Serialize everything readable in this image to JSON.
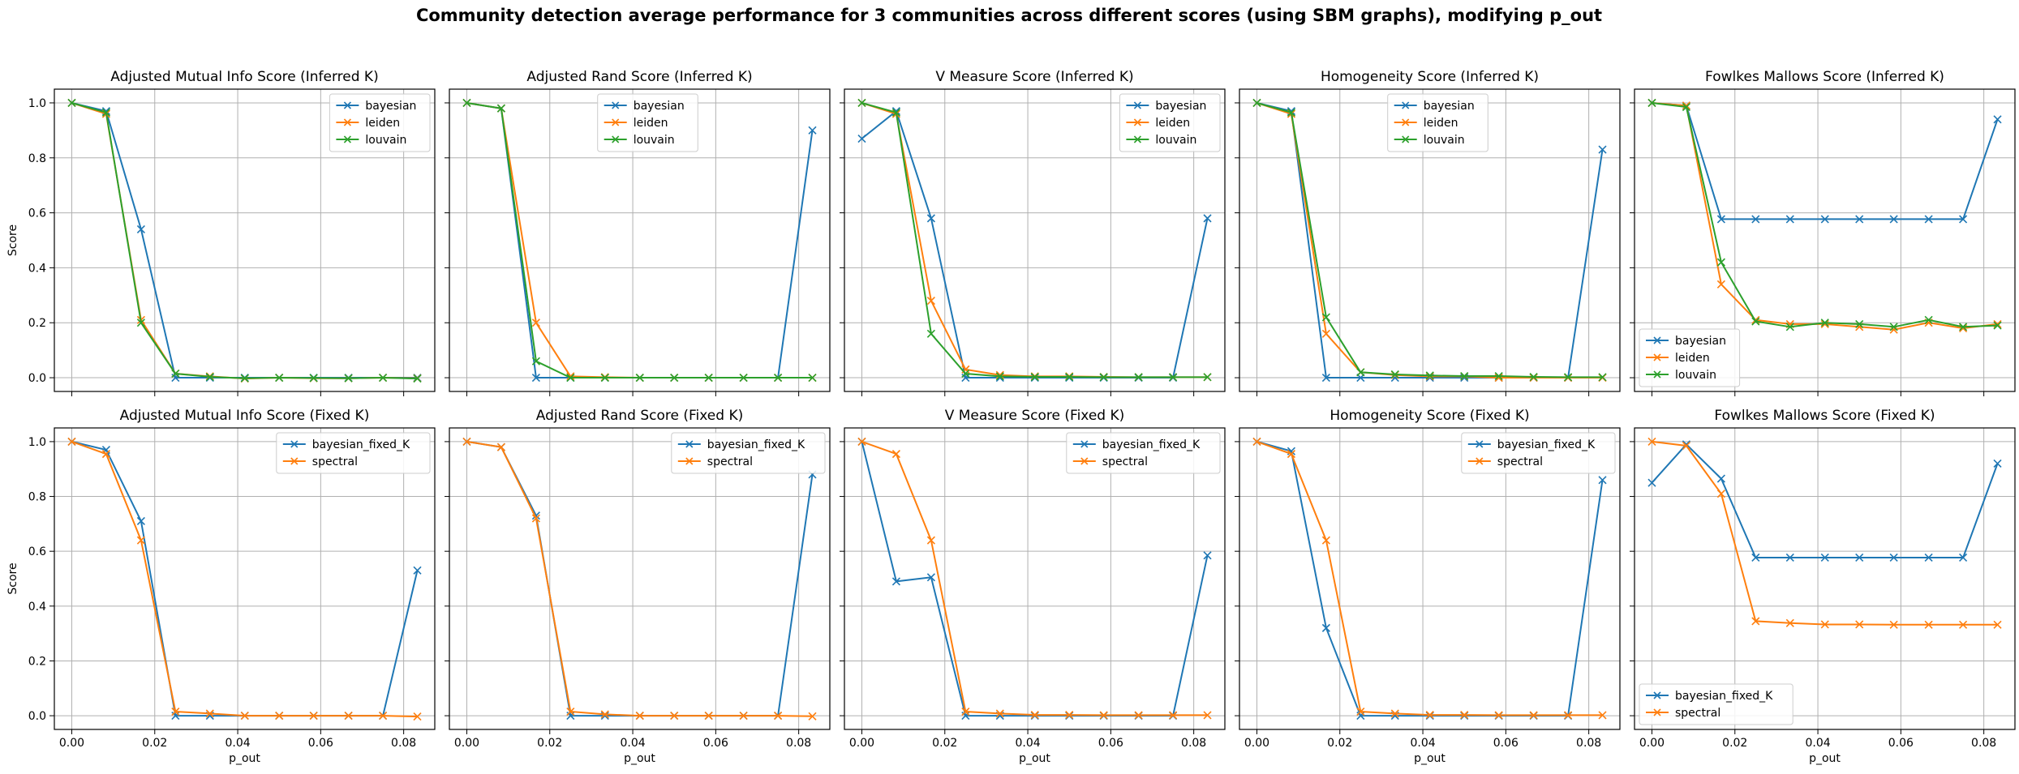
{
  "figure": {
    "suptitle": "Community detection average performance for 3 communities across different scores (using SBM graphs), modifying p_out"
  },
  "colors": {
    "bayesian": "#1f77b4",
    "leiden": "#ff7f0e",
    "louvain": "#2ca02c",
    "bayesian_fixed_K": "#1f77b4",
    "spectral": "#ff7f0e"
  },
  "chart_data": [
    {
      "type": "line",
      "title": "Adjusted Mutual Info Score (Inferred K)",
      "xlabel": "",
      "ylabel": "Score",
      "xlim": [
        -0.0042,
        0.0875
      ],
      "ylim": [
        -0.05,
        1.05
      ],
      "legend": "upper right",
      "grid": true,
      "marker": "x",
      "x": [
        0.0,
        0.0083,
        0.0167,
        0.025,
        0.0333,
        0.0417,
        0.05,
        0.0583,
        0.0667,
        0.075,
        0.0833
      ],
      "xticks": [
        "0.00",
        "0.02",
        "0.04",
        "0.06",
        "0.08"
      ],
      "yticks": [
        "0.0",
        "0.2",
        "0.4",
        "0.6",
        "0.8",
        "1.0"
      ],
      "series": [
        {
          "name": "bayesian",
          "color": "#1f77b4",
          "values": [
            1.0,
            0.97,
            0.54,
            0.0,
            0.0,
            0.0,
            0.0,
            0.0,
            0.0,
            0.0,
            0.0
          ]
        },
        {
          "name": "leiden",
          "color": "#ff7f0e",
          "values": [
            1.0,
            0.96,
            0.21,
            0.015,
            0.005,
            -0.003,
            0.0,
            -0.002,
            -0.002,
            0.0,
            -0.002
          ]
        },
        {
          "name": "louvain",
          "color": "#2ca02c",
          "values": [
            1.0,
            0.965,
            0.2,
            0.015,
            0.003,
            -0.002,
            0.0,
            -0.001,
            -0.002,
            0.0,
            -0.003
          ]
        }
      ]
    },
    {
      "type": "line",
      "title": "Adjusted Rand Score (Inferred K)",
      "xlabel": "",
      "ylabel": "",
      "xlim": [
        -0.0042,
        0.0875
      ],
      "ylim": [
        -0.05,
        1.05
      ],
      "legend": "upper center",
      "grid": true,
      "marker": "x",
      "x": [
        0.0,
        0.0083,
        0.0167,
        0.025,
        0.0333,
        0.0417,
        0.05,
        0.0583,
        0.0667,
        0.075,
        0.0833
      ],
      "xticks": [
        "0.00",
        "0.02",
        "0.04",
        "0.06",
        "0.08"
      ],
      "yticks": [
        "0.0",
        "0.2",
        "0.4",
        "0.6",
        "0.8",
        "1.0"
      ],
      "series": [
        {
          "name": "bayesian",
          "color": "#1f77b4",
          "values": [
            1.0,
            0.98,
            0.0,
            0.0,
            0.0,
            0.0,
            0.0,
            0.0,
            0.0,
            0.0,
            0.9
          ]
        },
        {
          "name": "leiden",
          "color": "#ff7f0e",
          "values": [
            1.0,
            0.98,
            0.2,
            0.005,
            0.002,
            0.0,
            0.0,
            0.0,
            0.0,
            0.0,
            0.0
          ]
        },
        {
          "name": "louvain",
          "color": "#2ca02c",
          "values": [
            1.0,
            0.98,
            0.06,
            0.0,
            0.0,
            0.0,
            0.0,
            0.0,
            0.0,
            0.0,
            0.0
          ]
        }
      ]
    },
    {
      "type": "line",
      "title": "V Measure Score (Inferred K)",
      "xlabel": "",
      "ylabel": "",
      "xlim": [
        -0.0042,
        0.0875
      ],
      "ylim": [
        -0.05,
        1.05
      ],
      "legend": "upper right",
      "grid": true,
      "marker": "x",
      "x": [
        0.0,
        0.0083,
        0.0167,
        0.025,
        0.0333,
        0.0417,
        0.05,
        0.0583,
        0.0667,
        0.075,
        0.0833
      ],
      "xticks": [
        "0.00",
        "0.02",
        "0.04",
        "0.06",
        "0.08"
      ],
      "yticks": [
        "0.0",
        "0.2",
        "0.4",
        "0.6",
        "0.8",
        "1.0"
      ],
      "series": [
        {
          "name": "bayesian",
          "color": "#1f77b4",
          "values": [
            0.87,
            0.97,
            0.58,
            0.0,
            0.0,
            0.0,
            0.0,
            0.0,
            0.0,
            0.0,
            0.58
          ]
        },
        {
          "name": "leiden",
          "color": "#ff7f0e",
          "values": [
            1.0,
            0.96,
            0.28,
            0.03,
            0.01,
            0.005,
            0.005,
            0.003,
            0.002,
            0.002,
            0.002
          ]
        },
        {
          "name": "louvain",
          "color": "#2ca02c",
          "values": [
            1.0,
            0.965,
            0.16,
            0.015,
            0.005,
            0.003,
            0.003,
            0.002,
            0.002,
            0.002,
            0.002
          ]
        }
      ]
    },
    {
      "type": "line",
      "title": "Homogeneity Score (Inferred K)",
      "xlabel": "",
      "ylabel": "",
      "xlim": [
        -0.0042,
        0.0875
      ],
      "ylim": [
        -0.05,
        1.05
      ],
      "legend": "upper center",
      "grid": true,
      "marker": "x",
      "x": [
        0.0,
        0.0083,
        0.0167,
        0.025,
        0.0333,
        0.0417,
        0.05,
        0.0583,
        0.0667,
        0.075,
        0.0833
      ],
      "xticks": [
        "0.00",
        "0.02",
        "0.04",
        "0.06",
        "0.08"
      ],
      "yticks": [
        "0.0",
        "0.2",
        "0.4",
        "0.6",
        "0.8",
        "1.0"
      ],
      "series": [
        {
          "name": "bayesian",
          "color": "#1f77b4",
          "values": [
            1.0,
            0.97,
            0.0,
            0.0,
            0.0,
            0.0,
            0.0,
            0.0,
            0.0,
            0.0,
            0.83
          ]
        },
        {
          "name": "leiden",
          "color": "#ff7f0e",
          "values": [
            1.0,
            0.96,
            0.16,
            0.02,
            0.01,
            0.005,
            0.005,
            0.0,
            0.0,
            0.0,
            0.0
          ]
        },
        {
          "name": "louvain",
          "color": "#2ca02c",
          "values": [
            1.0,
            0.965,
            0.22,
            0.02,
            0.012,
            0.008,
            0.006,
            0.006,
            0.003,
            0.002,
            0.002
          ]
        }
      ]
    },
    {
      "type": "line",
      "title": "Fowlkes Mallows Score (Inferred K)",
      "xlabel": "",
      "ylabel": "",
      "xlim": [
        -0.0042,
        0.0875
      ],
      "ylim": [
        -0.05,
        1.05
      ],
      "legend": "lower left",
      "grid": true,
      "marker": "x",
      "x": [
        0.0,
        0.0083,
        0.0167,
        0.025,
        0.0333,
        0.0417,
        0.05,
        0.0583,
        0.0667,
        0.075,
        0.0833
      ],
      "xticks": [
        "0.00",
        "0.02",
        "0.04",
        "0.06",
        "0.08"
      ],
      "yticks": [
        "0.0",
        "0.2",
        "0.4",
        "0.6",
        "0.8",
        "1.0"
      ],
      "series": [
        {
          "name": "bayesian",
          "color": "#1f77b4",
          "values": [
            1.0,
            0.99,
            0.577,
            0.577,
            0.577,
            0.577,
            0.577,
            0.577,
            0.577,
            0.577,
            0.94
          ]
        },
        {
          "name": "leiden",
          "color": "#ff7f0e",
          "values": [
            1.0,
            0.99,
            0.34,
            0.21,
            0.195,
            0.195,
            0.185,
            0.175,
            0.2,
            0.18,
            0.195
          ]
        },
        {
          "name": "louvain",
          "color": "#2ca02c",
          "values": [
            1.0,
            0.985,
            0.42,
            0.205,
            0.185,
            0.2,
            0.195,
            0.185,
            0.21,
            0.185,
            0.19
          ]
        }
      ]
    },
    {
      "type": "line",
      "title": "Adjusted Mutual Info Score (Fixed K)",
      "xlabel": "p_out",
      "ylabel": "Score",
      "xlim": [
        -0.0042,
        0.0875
      ],
      "ylim": [
        -0.05,
        1.05
      ],
      "legend": "upper right",
      "grid": true,
      "marker": "x",
      "x": [
        0.0,
        0.0083,
        0.0167,
        0.025,
        0.0333,
        0.0417,
        0.05,
        0.0583,
        0.0667,
        0.075,
        0.0833
      ],
      "xticks": [
        "0.00",
        "0.02",
        "0.04",
        "0.06",
        "0.08"
      ],
      "yticks": [
        "0.0",
        "0.2",
        "0.4",
        "0.6",
        "0.8",
        "1.0"
      ],
      "series": [
        {
          "name": "bayesian_fixed_K",
          "color": "#1f77b4",
          "values": [
            1.0,
            0.97,
            0.71,
            0.0,
            0.0,
            0.0,
            0.0,
            0.0,
            0.0,
            0.0,
            0.53
          ]
        },
        {
          "name": "spectral",
          "color": "#ff7f0e",
          "values": [
            1.0,
            0.955,
            0.64,
            0.015,
            0.008,
            0.0,
            0.0,
            0.0,
            0.0,
            0.0,
            -0.003
          ]
        }
      ]
    },
    {
      "type": "line",
      "title": "Adjusted Rand Score (Fixed K)",
      "xlabel": "p_out",
      "ylabel": "",
      "xlim": [
        -0.0042,
        0.0875
      ],
      "ylim": [
        -0.05,
        1.05
      ],
      "legend": "upper right",
      "grid": true,
      "marker": "x",
      "x": [
        0.0,
        0.0083,
        0.0167,
        0.025,
        0.0333,
        0.0417,
        0.05,
        0.0583,
        0.0667,
        0.075,
        0.0833
      ],
      "xticks": [
        "0.00",
        "0.02",
        "0.04",
        "0.06",
        "0.08"
      ],
      "yticks": [
        "0.0",
        "0.2",
        "0.4",
        "0.6",
        "0.8",
        "1.0"
      ],
      "series": [
        {
          "name": "bayesian_fixed_K",
          "color": "#1f77b4",
          "values": [
            1.0,
            0.98,
            0.73,
            0.0,
            0.0,
            0.0,
            0.0,
            0.0,
            0.0,
            0.0,
            0.88
          ]
        },
        {
          "name": "spectral",
          "color": "#ff7f0e",
          "values": [
            1.0,
            0.98,
            0.72,
            0.015,
            0.005,
            0.0,
            0.0,
            0.0,
            0.0,
            0.0,
            -0.002
          ]
        }
      ]
    },
    {
      "type": "line",
      "title": "V Measure Score (Fixed K)",
      "xlabel": "p_out",
      "ylabel": "",
      "xlim": [
        -0.0042,
        0.0875
      ],
      "ylim": [
        -0.05,
        1.05
      ],
      "legend": "upper right",
      "grid": true,
      "marker": "x",
      "x": [
        0.0,
        0.0083,
        0.0167,
        0.025,
        0.0333,
        0.0417,
        0.05,
        0.0583,
        0.0667,
        0.075,
        0.0833
      ],
      "xticks": [
        "0.00",
        "0.02",
        "0.04",
        "0.06",
        "0.08"
      ],
      "yticks": [
        "0.0",
        "0.2",
        "0.4",
        "0.6",
        "0.8",
        "1.0"
      ],
      "series": [
        {
          "name": "bayesian_fixed_K",
          "color": "#1f77b4",
          "values": [
            1.0,
            0.49,
            0.505,
            0.0,
            0.0,
            0.0,
            0.0,
            0.0,
            0.0,
            0.0,
            0.585
          ]
        },
        {
          "name": "spectral",
          "color": "#ff7f0e",
          "values": [
            1.0,
            0.955,
            0.64,
            0.015,
            0.008,
            0.003,
            0.003,
            0.002,
            0.002,
            0.002,
            0.002
          ]
        }
      ]
    },
    {
      "type": "line",
      "title": "Homogeneity Score (Fixed K)",
      "xlabel": "p_out",
      "ylabel": "",
      "xlim": [
        -0.0042,
        0.0875
      ],
      "ylim": [
        -0.05,
        1.05
      ],
      "legend": "upper right",
      "grid": true,
      "marker": "x",
      "x": [
        0.0,
        0.0083,
        0.0167,
        0.025,
        0.0333,
        0.0417,
        0.05,
        0.0583,
        0.0667,
        0.075,
        0.0833
      ],
      "xticks": [
        "0.00",
        "0.02",
        "0.04",
        "0.06",
        "0.08"
      ],
      "yticks": [
        "0.0",
        "0.2",
        "0.4",
        "0.6",
        "0.8",
        "1.0"
      ],
      "series": [
        {
          "name": "bayesian_fixed_K",
          "color": "#1f77b4",
          "values": [
            1.0,
            0.965,
            0.32,
            0.0,
            0.0,
            0.0,
            0.0,
            0.0,
            0.0,
            0.0,
            0.86
          ]
        },
        {
          "name": "spectral",
          "color": "#ff7f0e",
          "values": [
            1.0,
            0.955,
            0.64,
            0.015,
            0.008,
            0.003,
            0.003,
            0.002,
            0.002,
            0.002,
            0.002
          ]
        }
      ]
    },
    {
      "type": "line",
      "title": "Fowlkes Mallows Score (Fixed K)",
      "xlabel": "p_out",
      "ylabel": "",
      "xlim": [
        -0.0042,
        0.0875
      ],
      "ylim": [
        -0.05,
        1.05
      ],
      "legend": "lower left",
      "grid": true,
      "marker": "x",
      "x": [
        0.0,
        0.0083,
        0.0167,
        0.025,
        0.0333,
        0.0417,
        0.05,
        0.0583,
        0.0667,
        0.075,
        0.0833
      ],
      "xticks": [
        "0.00",
        "0.02",
        "0.04",
        "0.06",
        "0.08"
      ],
      "yticks": [
        "0.0",
        "0.2",
        "0.4",
        "0.6",
        "0.8",
        "1.0"
      ],
      "series": [
        {
          "name": "bayesian_fixed_K",
          "color": "#1f77b4",
          "values": [
            0.85,
            0.99,
            0.865,
            0.577,
            0.577,
            0.577,
            0.577,
            0.577,
            0.577,
            0.577,
            0.92
          ]
        },
        {
          "name": "spectral",
          "color": "#ff7f0e",
          "values": [
            1.0,
            0.985,
            0.81,
            0.345,
            0.338,
            0.333,
            0.333,
            0.332,
            0.332,
            0.332,
            0.332
          ]
        }
      ]
    }
  ]
}
